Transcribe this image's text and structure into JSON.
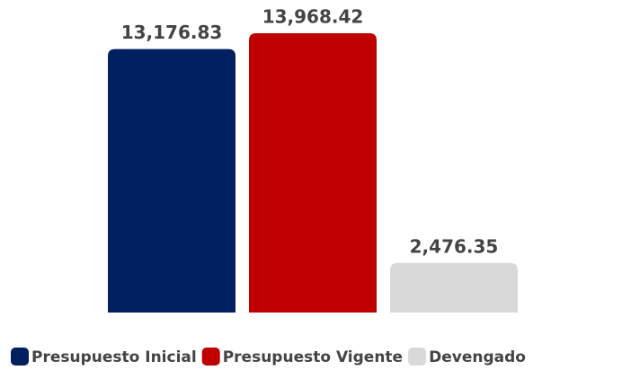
{
  "chart_data": {
    "type": "bar",
    "categories": [
      "Presupuesto Inicial",
      "Presupuesto Vigente",
      "Devengado"
    ],
    "values": [
      13176.83,
      13968.42,
      2476.35
    ],
    "value_labels": [
      "13,176.83",
      "13,968.42",
      "2,476.35"
    ],
    "colors": [
      "#002060",
      "#c00000",
      "#d9d9d9"
    ],
    "legend": "bottom"
  }
}
